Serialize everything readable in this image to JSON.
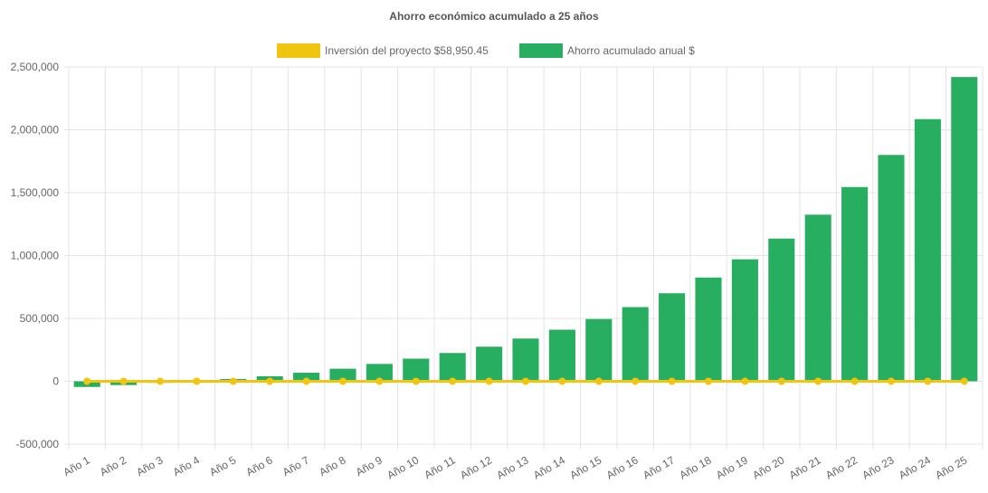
{
  "chart_data": {
    "type": "bar",
    "title": "Ahorro económico acumulado a 25 años",
    "categories": [
      "Año 1",
      "Año 2",
      "Año 3",
      "Año 4",
      "Año 5",
      "Año 6",
      "Año 7",
      "Año 8",
      "Año 9",
      "Año 10",
      "Año 11",
      "Año 12",
      "Año 13",
      "Año 14",
      "Año 15",
      "Año 16",
      "Año 17",
      "Año 18",
      "Año 19",
      "Año 20",
      "Año 21",
      "Año 22",
      "Año 23",
      "Año 24",
      "Año 25"
    ],
    "series": [
      {
        "name": "Inversión del proyecto $58,950.45",
        "kind": "line",
        "color": "#f1c40f",
        "values": [
          0,
          0,
          0,
          0,
          0,
          0,
          0,
          0,
          0,
          0,
          0,
          0,
          0,
          0,
          0,
          0,
          0,
          0,
          0,
          0,
          0,
          0,
          0,
          0,
          0
        ]
      },
      {
        "name": "Ahorro acumulado anual $",
        "kind": "bar",
        "color": "#27ae60",
        "values": [
          -45000,
          -30000,
          -12000,
          5000,
          18000,
          40000,
          68000,
          100000,
          138000,
          180000,
          225000,
          275000,
          340000,
          410000,
          495000,
          590000,
          700000,
          825000,
          970000,
          1135000,
          1325000,
          1545000,
          1800000,
          2085000,
          2420000
        ]
      }
    ],
    "yticks": [
      "2,500,000",
      "2,000,000",
      "1,500,000",
      "1,000,000",
      "500,000",
      "0",
      "-500,000"
    ],
    "ylim": [
      -500000,
      2500000
    ],
    "grid": true,
    "legend_position": "top"
  }
}
